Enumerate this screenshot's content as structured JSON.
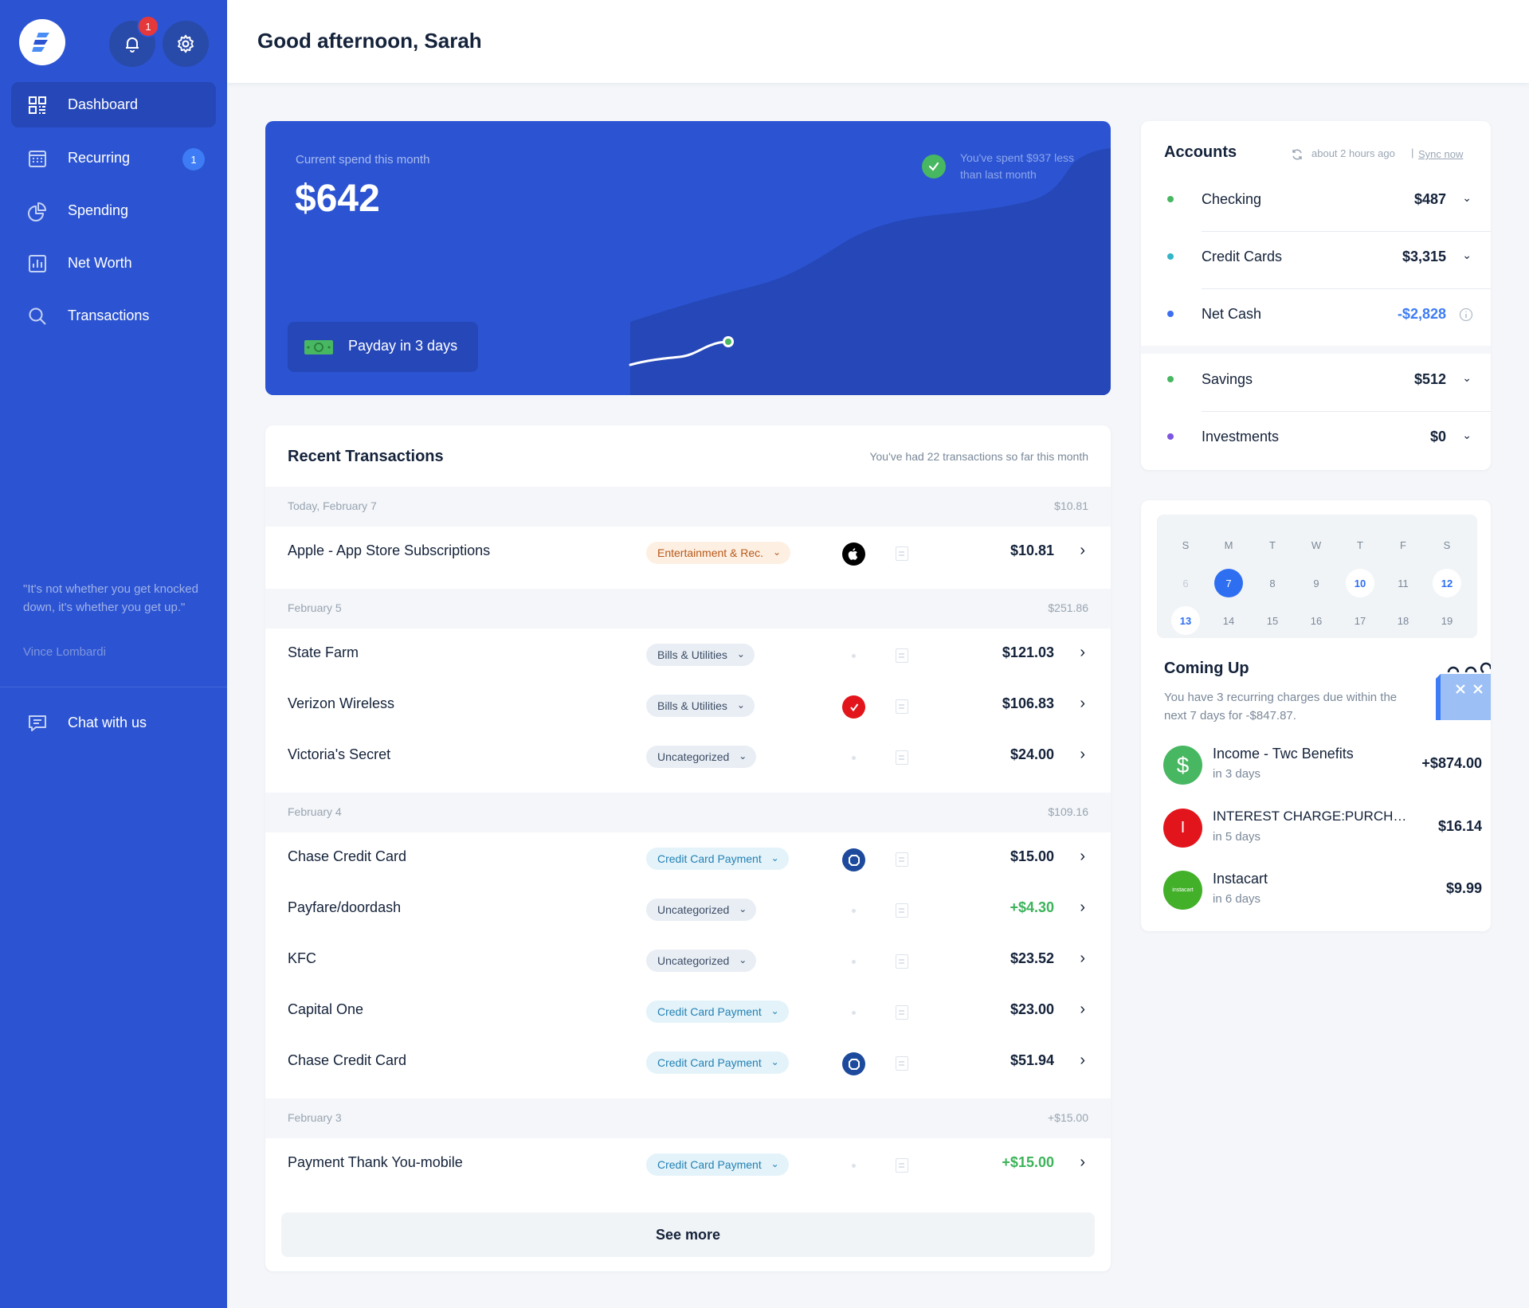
{
  "header": {
    "greeting": "Good afternoon, Sarah"
  },
  "sidebar": {
    "notification_count": "1",
    "items": [
      {
        "label": "Dashboard",
        "icon": "grid-icon",
        "active": true
      },
      {
        "label": "Recurring",
        "icon": "calendar-icon",
        "badge": "1"
      },
      {
        "label": "Spending",
        "icon": "pie-chart-icon"
      },
      {
        "label": "Net Worth",
        "icon": "bar-chart-icon"
      },
      {
        "label": "Transactions",
        "icon": "search-icon"
      }
    ],
    "quote": "\"It's not whether you get knocked down, it's whether you get up.\"",
    "quote_author": "Vince Lombardi",
    "chat_label": "Chat with us"
  },
  "spend": {
    "label": "Current spend this month",
    "amount": "$642",
    "comparison": "You've spent $937 less than last month",
    "payday": "Payday in 3 days",
    "colors": {
      "card": "#2c54d2",
      "area_dark": "#2547b8",
      "check": "#47b761"
    }
  },
  "transactions": {
    "title": "Recent Transactions",
    "subtitle": "You've had 22 transactions so far this month",
    "groups": [
      {
        "date": "Today, February 7",
        "total": "$10.81",
        "items": [
          {
            "name": "Apple - App Store Subscriptions",
            "category": "Entertainment & Rec.",
            "amount": "$10.81"
          }
        ]
      },
      {
        "date": "February 5",
        "total": "$251.86",
        "items": [
          {
            "name": "State Farm",
            "category": "Bills & Utilities",
            "amount": "$121.03"
          },
          {
            "name": "Verizon Wireless",
            "category": "Bills & Utilities",
            "amount": "$106.83"
          },
          {
            "name": "Victoria's Secret",
            "category": "Uncategorized",
            "amount": "$24.00"
          }
        ]
      },
      {
        "date": "February 4",
        "total": "$109.16",
        "items": [
          {
            "name": "Chase Credit Card",
            "category": "Credit Card Payment",
            "amount": "$15.00"
          },
          {
            "name": "Payfare/doordash",
            "category": "Uncategorized",
            "amount": "+$4.30"
          },
          {
            "name": "KFC",
            "category": "Uncategorized",
            "amount": "$23.52"
          },
          {
            "name": "Capital One",
            "category": "Credit Card Payment",
            "amount": "$23.00"
          },
          {
            "name": "Chase Credit Card",
            "category": "Credit Card Payment",
            "amount": "$51.94"
          }
        ]
      },
      {
        "date": "February 3",
        "total": "+$15.00",
        "items": [
          {
            "name": "Payment Thank You-mobile",
            "category": "Credit Card Payment",
            "amount": "+$15.00"
          }
        ]
      }
    ],
    "see_more": "See more"
  },
  "accounts": {
    "title": "Accounts",
    "sync_time": "about 2 hours ago",
    "sync_separator": "|",
    "sync_link": "Sync now",
    "items": [
      {
        "name": "Checking",
        "value": "$487",
        "color": "#47b761"
      },
      {
        "name": "Credit Cards",
        "value": "$3,315",
        "color": "#33b5c8"
      },
      {
        "name": "Net Cash",
        "value": "-$2,828",
        "color": "#3d6ef0"
      },
      {
        "name": "Savings",
        "value": "$512",
        "color": "#47b761"
      },
      {
        "name": "Investments",
        "value": "$0",
        "color": "#7d55e0"
      }
    ]
  },
  "calendar": {
    "weekdays": [
      "S",
      "M",
      "T",
      "W",
      "T",
      "F",
      "S"
    ],
    "week1": [
      "6",
      "7",
      "8",
      "9",
      "10",
      "11",
      "12"
    ],
    "week2": [
      "13",
      "14",
      "15",
      "16",
      "17",
      "18",
      "19"
    ]
  },
  "coming_up": {
    "title": "Coming Up",
    "description": "You have 3 recurring charges due within the next 7 days for -$847.87.",
    "items": [
      {
        "name": "Income - Twc Benefits",
        "due": "in 3 days",
        "amount": "+$874.00",
        "icon": "dollar-icon"
      },
      {
        "name": "INTEREST CHARGE:PURCH…",
        "due": "in 5 days",
        "amount": "$16.14",
        "icon": "letter-i-icon",
        "icon_text": "I"
      },
      {
        "name": "Instacart",
        "due": "in 6 days",
        "amount": "$9.99",
        "icon": "instacart-logo",
        "logo_text": "instacart"
      }
    ]
  }
}
